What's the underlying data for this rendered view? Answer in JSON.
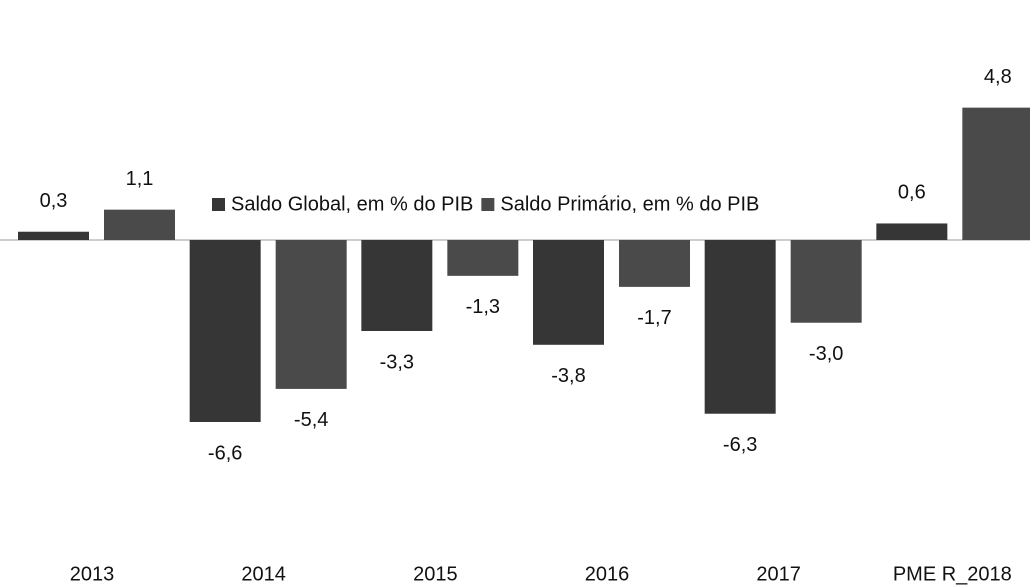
{
  "chart_data": {
    "type": "bar",
    "categories": [
      "2013",
      "2014",
      "2015",
      "2016",
      "2017",
      "PME R_2018"
    ],
    "series": [
      {
        "name": "Saldo Global, em % do PIB",
        "color": "#363636",
        "values": [
          0.3,
          -6.6,
          -3.3,
          -3.8,
          -6.3,
          0.6
        ],
        "value_labels": [
          "0,3",
          "-6,6",
          "-3,3",
          "-3,8",
          "-6,3",
          "0,6"
        ]
      },
      {
        "name": "Saldo Primário, em % do PIB",
        "color": "#4a4a4a",
        "values": [
          1.1,
          -5.4,
          -1.3,
          -1.7,
          -3.0,
          4.8
        ],
        "value_labels": [
          "1,1",
          "-5,4",
          "-1,3",
          "-1,7",
          "-3,0",
          "4,8"
        ]
      }
    ],
    "legend": "center"
  }
}
